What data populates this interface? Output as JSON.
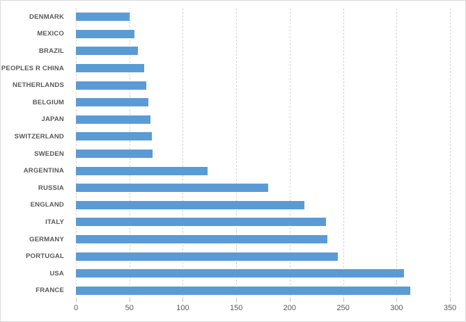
{
  "chart_data": {
    "type": "bar",
    "orientation": "horizontal",
    "title": "",
    "xlabel": "",
    "ylabel": "",
    "categories": [
      "DENMARK",
      "MEXICO",
      "BRAZIL",
      "PEOPLES R CHINA",
      "NETHERLANDS",
      "BELGIUM",
      "JAPAN",
      "SWITZERLAND",
      "SWEDEN",
      "ARGENTINA",
      "RUSSIA",
      "ENGLAND",
      "ITALY",
      "GERMANY",
      "PORTUGAL",
      "USA",
      "FRANCE"
    ],
    "values": [
      50,
      55,
      58,
      64,
      66,
      68,
      70,
      71,
      72,
      123,
      180,
      214,
      234,
      235,
      245,
      307,
      313
    ],
    "xlim": [
      0,
      350
    ],
    "xticks": [
      0,
      50,
      100,
      150,
      200,
      250,
      300,
      350
    ],
    "grid": "vertical-dashed",
    "legend": "none",
    "colors": {
      "bar": "#5B9BD5",
      "gridline": "#D6D6D6",
      "tick": "#C0C0C0",
      "axis_text": "#595959",
      "border": "#D9D9D9",
      "background": "#FFFFFF"
    }
  }
}
